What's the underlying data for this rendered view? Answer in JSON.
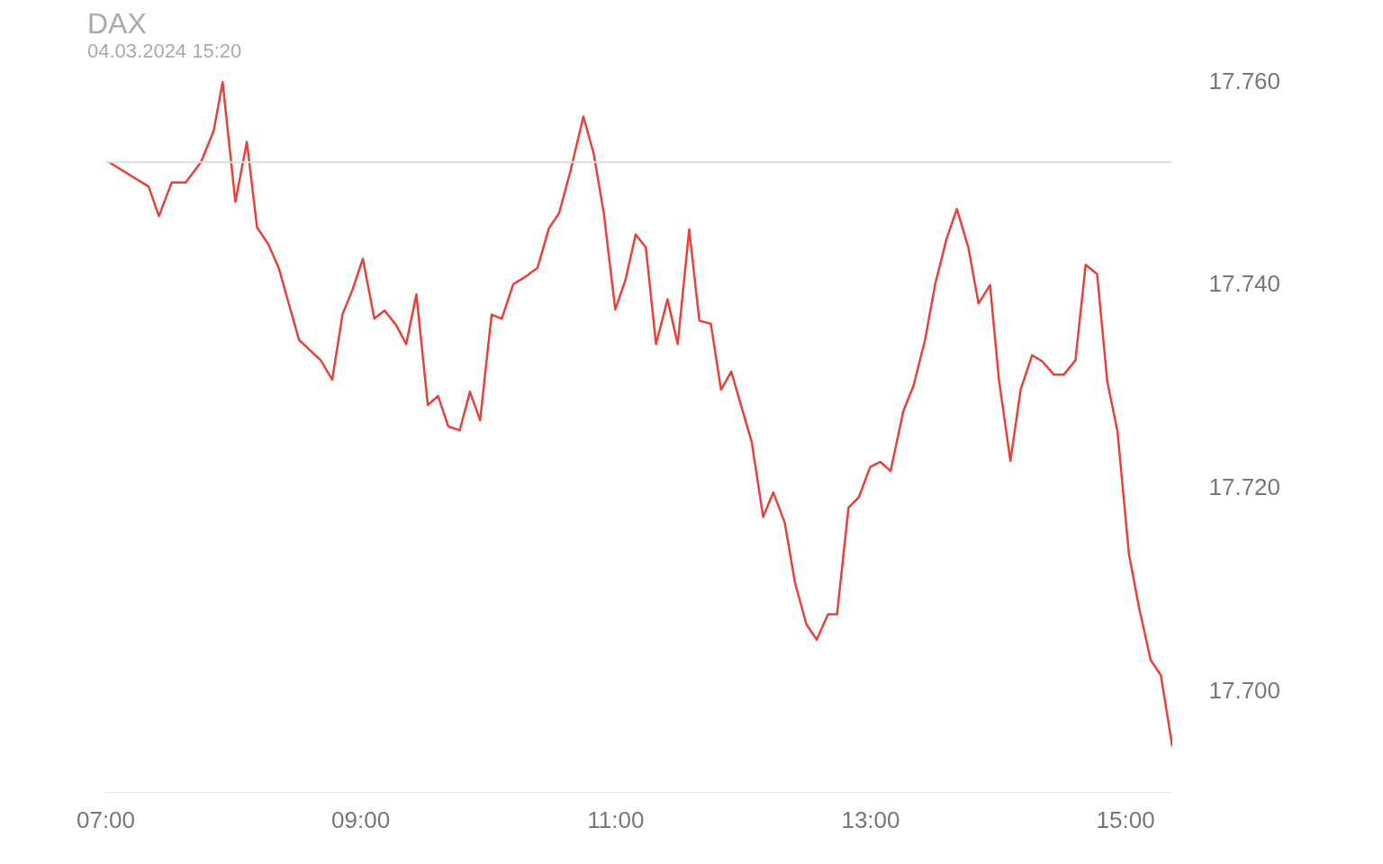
{
  "chart_data": {
    "type": "line",
    "title": "DAX",
    "subtitle": "04.03.2024 15:20",
    "x": [
      7.03,
      7.34,
      7.42,
      7.52,
      7.63,
      7.75,
      7.85,
      7.92,
      8.02,
      8.11,
      8.19,
      8.28,
      8.36,
      8.52,
      8.69,
      8.78,
      8.86,
      8.94,
      9.02,
      9.11,
      9.19,
      9.28,
      9.36,
      9.44,
      9.53,
      9.61,
      9.69,
      9.78,
      9.86,
      9.94,
      10.03,
      10.11,
      10.2,
      10.28,
      10.39,
      10.48,
      10.56,
      10.65,
      10.75,
      10.83,
      10.91,
      11.0,
      11.08,
      11.16,
      11.24,
      11.32,
      11.41,
      11.49,
      11.58,
      11.66,
      11.75,
      11.83,
      11.91,
      12.0,
      12.07,
      12.16,
      12.24,
      12.33,
      12.41,
      12.5,
      12.58,
      12.67,
      12.74,
      12.83,
      12.91,
      13.0,
      13.08,
      13.16,
      13.26,
      13.34,
      13.43,
      13.51,
      13.6,
      13.68,
      13.77,
      13.85,
      13.94,
      14.01,
      14.1,
      14.18,
      14.27,
      14.35,
      14.44,
      14.52,
      14.61,
      14.69,
      14.78,
      14.86,
      14.94,
      15.03,
      15.11,
      15.2,
      15.28,
      15.37
    ],
    "series": [
      {
        "color": "#e8413a",
        "values": [
          17752.0,
          17749.6,
          17746.7,
          17750.0,
          17750.0,
          17752.0,
          17755.1,
          17759.9,
          17748.1,
          17754.0,
          17745.6,
          17743.9,
          17741.6,
          17734.5,
          17732.5,
          17730.6,
          17737.0,
          17739.5,
          17742.5,
          17736.6,
          17737.4,
          17736.0,
          17734.1,
          17739.0,
          17728.1,
          17729.0,
          17726.0,
          17725.6,
          17729.4,
          17726.6,
          17737.0,
          17736.6,
          17740.0,
          17740.6,
          17741.6,
          17745.5,
          17747.0,
          17751.2,
          17756.5,
          17752.9,
          17747.0,
          17737.5,
          17740.4,
          17744.9,
          17743.6,
          17734.1,
          17738.5,
          17734.1,
          17745.4,
          17736.4,
          17736.1,
          17729.6,
          17731.4,
          17727.5,
          17724.5,
          17717.1,
          17719.5,
          17716.5,
          17710.6,
          17706.5,
          17705.0,
          17707.5,
          17707.5,
          17718.0,
          17719.0,
          17722.0,
          17722.5,
          17721.6,
          17727.5,
          17730.0,
          17734.5,
          17740.0,
          17744.5,
          17747.4,
          17743.6,
          17738.1,
          17739.9,
          17730.6,
          17722.6,
          17729.6,
          17733.0,
          17732.4,
          17731.1,
          17731.1,
          17732.5,
          17741.9,
          17741.0,
          17730.4,
          17725.5,
          17713.4,
          17708.1,
          17703.0,
          17701.5,
          17694.5
        ]
      }
    ],
    "xlim": [
      7,
      15.37
    ],
    "ylim": [
      17690,
      17760
    ],
    "xticks": [
      {
        "value": 7,
        "label": "07:00"
      },
      {
        "value": 9,
        "label": "09:00"
      },
      {
        "value": 11,
        "label": "11:00"
      },
      {
        "value": 13,
        "label": "13:00"
      },
      {
        "value": 15,
        "label": "15:00"
      }
    ],
    "yticks": [
      {
        "value": 17700,
        "label": "17.700"
      },
      {
        "value": 17720,
        "label": "17.720"
      },
      {
        "value": 17740,
        "label": "17.740"
      },
      {
        "value": 17760,
        "label": "17.760"
      }
    ],
    "ref_lines": [
      {
        "axis": "y",
        "value": 17752,
        "color": "#dddddd"
      }
    ]
  }
}
